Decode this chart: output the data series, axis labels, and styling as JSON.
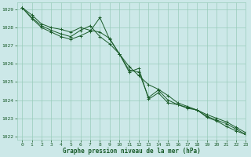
{
  "title": "Graphe pression niveau de la mer (hPa)",
  "bg_color": "#cce8e8",
  "grid_color": "#99ccbb",
  "line_color": "#1a5c2a",
  "xlim": [
    -0.5,
    23
  ],
  "ylim": [
    1021.8,
    1029.4
  ],
  "yticks": [
    1022,
    1023,
    1024,
    1025,
    1026,
    1027,
    1028,
    1029
  ],
  "xticks": [
    0,
    1,
    2,
    3,
    4,
    5,
    6,
    7,
    8,
    9,
    10,
    11,
    12,
    13,
    14,
    15,
    16,
    17,
    18,
    19,
    20,
    21,
    22,
    23
  ],
  "series1_x": [
    0,
    1,
    2,
    3,
    4,
    5,
    6,
    7,
    8,
    9,
    10,
    11,
    12,
    13,
    14,
    15,
    16,
    17,
    18,
    19,
    20,
    21,
    22,
    23
  ],
  "series1_y": [
    1029.1,
    1028.7,
    1028.2,
    1028.0,
    1027.9,
    1027.75,
    1028.0,
    1027.85,
    1027.75,
    1027.4,
    1026.55,
    1025.85,
    1025.35,
    1024.85,
    1024.6,
    1024.25,
    1023.85,
    1023.65,
    1023.45,
    1023.2,
    1023.0,
    1022.8,
    1022.5,
    1022.2
  ],
  "series2_x": [
    0,
    1,
    2,
    3,
    4,
    5,
    6,
    7,
    8,
    9,
    10,
    11,
    12,
    13,
    14,
    15,
    16,
    17,
    18,
    19,
    20,
    21,
    22,
    23
  ],
  "series2_y": [
    1029.1,
    1028.55,
    1028.1,
    1027.85,
    1027.65,
    1027.5,
    1027.85,
    1028.1,
    1027.5,
    1027.1,
    1026.55,
    1025.65,
    1025.55,
    1024.15,
    1024.55,
    1024.0,
    1023.75,
    1023.6,
    1023.45,
    1023.1,
    1022.9,
    1022.7,
    1022.4,
    1022.1
  ],
  "series3_x": [
    0,
    1,
    2,
    3,
    4,
    5,
    6,
    7,
    8,
    9,
    10,
    11,
    12,
    13,
    14,
    15,
    16,
    17,
    18,
    19,
    20,
    21,
    22,
    23
  ],
  "series3_y": [
    1029.1,
    1028.5,
    1028.0,
    1027.75,
    1027.5,
    1027.35,
    1027.55,
    1027.8,
    1028.55,
    1027.35,
    1026.55,
    1025.55,
    1025.75,
    1024.05,
    1024.4,
    1023.85,
    1023.75,
    1023.55,
    1023.45,
    1023.05,
    1022.85,
    1022.55,
    1022.3,
    1022.1
  ]
}
